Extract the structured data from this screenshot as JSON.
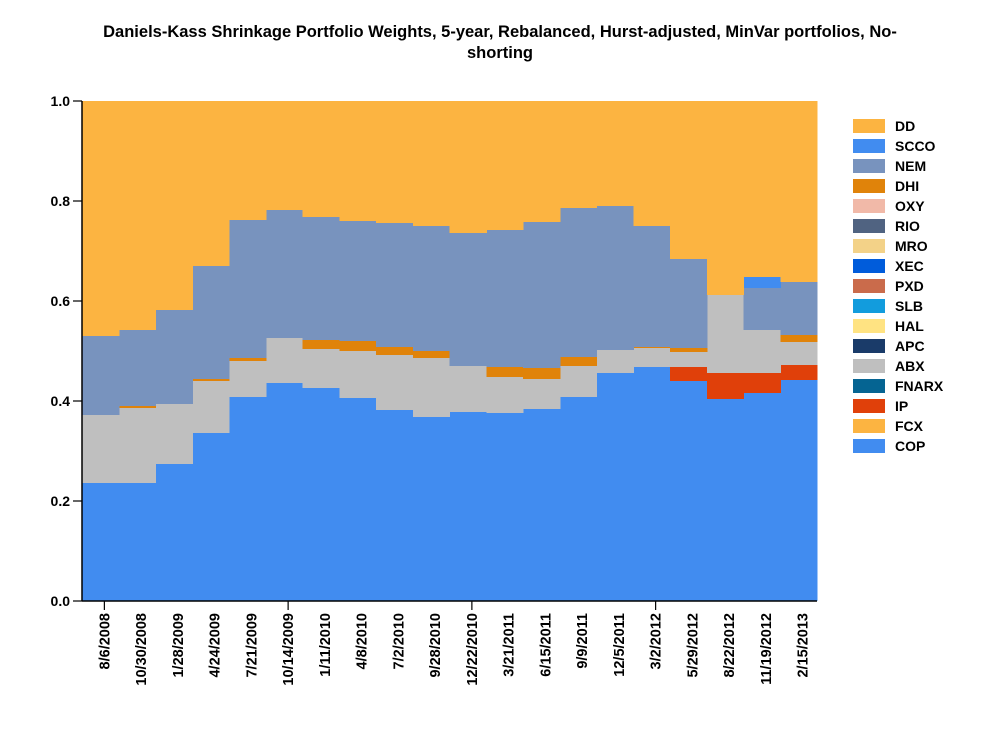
{
  "chart_data": {
    "type": "area",
    "stacked": true,
    "step": true,
    "title_lines": [
      "Daniels-Kass Shrinkage Portfolio Weights, 5-year, Rebalanced, Hurst-adjusted, MinVar portfolios, No-",
      "shorting"
    ],
    "xlabel": "",
    "ylabel": "",
    "ylim": [
      0,
      1
    ],
    "yticks": [
      "0.0",
      "0.2",
      "0.4",
      "0.6",
      "0.8",
      "1.0"
    ],
    "grid": false,
    "legend_position": "right",
    "x": [
      "8/6/2008",
      "10/30/2008",
      "1/28/2009",
      "4/24/2009",
      "7/21/2009",
      "10/14/2009",
      "1/11/2010",
      "4/8/2010",
      "7/2/2010",
      "9/28/2010",
      "12/22/2010",
      "3/21/2011",
      "6/15/2011",
      "9/9/2011",
      "12/5/2011",
      "3/2/2012",
      "5/29/2012",
      "8/22/2012",
      "11/19/2012",
      "2/15/2013"
    ],
    "series": [
      {
        "name": "COP",
        "color": "#418CF0",
        "values": [
          0.236,
          0.236,
          0.274,
          0.336,
          0.408,
          0.436,
          0.426,
          0.406,
          0.382,
          0.368,
          0.378,
          0.376,
          0.384,
          0.408,
          0.456,
          0.468,
          0.44,
          0.404,
          0.416,
          0.442
        ]
      },
      {
        "name": "FCX",
        "color": "#FCB441",
        "values": [
          0,
          0,
          0,
          0,
          0,
          0,
          0,
          0,
          0,
          0,
          0,
          0,
          0,
          0,
          0,
          0,
          0,
          0,
          0,
          0
        ]
      },
      {
        "name": "IP",
        "color": "#E0400A",
        "values": [
          0,
          0,
          0,
          0,
          0,
          0,
          0,
          0,
          0,
          0,
          0,
          0,
          0,
          0,
          0,
          0,
          0.028,
          0.052,
          0.04,
          0.03
        ]
      },
      {
        "name": "FNARX",
        "color": "#056492",
        "values": [
          0,
          0,
          0,
          0,
          0,
          0,
          0,
          0,
          0,
          0,
          0,
          0,
          0,
          0,
          0,
          0,
          0,
          0,
          0,
          0
        ]
      },
      {
        "name": "ABX",
        "color": "#BFBFBF",
        "values": [
          0.136,
          0.15,
          0.12,
          0.104,
          0.072,
          0.09,
          0.078,
          0.094,
          0.11,
          0.118,
          0.092,
          0.072,
          0.06,
          0.062,
          0.046,
          0.038,
          0.03,
          0.156,
          0.086,
          0.046
        ]
      },
      {
        "name": "APC",
        "color": "#1A3B69",
        "values": [
          0,
          0,
          0,
          0,
          0,
          0,
          0,
          0,
          0,
          0,
          0,
          0,
          0,
          0,
          0,
          0,
          0,
          0,
          0,
          0
        ]
      },
      {
        "name": "HAL",
        "color": "#FFE382",
        "values": [
          0,
          0,
          0,
          0,
          0,
          0,
          0,
          0,
          0,
          0,
          0,
          0,
          0,
          0,
          0,
          0,
          0,
          0,
          0,
          0
        ]
      },
      {
        "name": "SLB",
        "color": "#129CDD",
        "values": [
          0,
          0,
          0,
          0,
          0,
          0,
          0,
          0,
          0,
          0,
          0,
          0,
          0,
          0,
          0,
          0,
          0,
          0,
          0,
          0
        ]
      },
      {
        "name": "PXD",
        "color": "#CA6B4B",
        "values": [
          0,
          0,
          0,
          0,
          0,
          0,
          0,
          0,
          0,
          0,
          0,
          0,
          0,
          0,
          0,
          0,
          0,
          0,
          0,
          0
        ]
      },
      {
        "name": "XEC",
        "color": "#005CDB",
        "values": [
          0,
          0,
          0,
          0,
          0,
          0,
          0,
          0,
          0,
          0,
          0,
          0,
          0,
          0,
          0,
          0,
          0,
          0,
          0,
          0
        ]
      },
      {
        "name": "MRO",
        "color": "#F3D288",
        "values": [
          0,
          0,
          0,
          0,
          0,
          0,
          0,
          0,
          0,
          0,
          0,
          0,
          0,
          0,
          0,
          0,
          0,
          0,
          0,
          0
        ]
      },
      {
        "name": "RIO",
        "color": "#506381",
        "values": [
          0,
          0,
          0,
          0,
          0,
          0,
          0,
          0,
          0,
          0,
          0,
          0,
          0,
          0,
          0,
          0,
          0,
          0,
          0,
          0
        ]
      },
      {
        "name": "OXY",
        "color": "#F1B9A8",
        "values": [
          0,
          0,
          0,
          0,
          0,
          0,
          0,
          0,
          0,
          0,
          0,
          0,
          0,
          0,
          0,
          0,
          0,
          0,
          0,
          0
        ]
      },
      {
        "name": "DHI",
        "color": "#E0830A",
        "values": [
          0,
          0.004,
          0,
          0.004,
          0.006,
          0,
          0.018,
          0.02,
          0.016,
          0.014,
          0,
          0.02,
          0.022,
          0.018,
          0,
          0.002,
          0.008,
          0,
          0,
          0.014
        ]
      },
      {
        "name": "NEM",
        "color": "#7893BE",
        "values": [
          0.158,
          0.152,
          0.188,
          0.226,
          0.276,
          0.256,
          0.246,
          0.24,
          0.248,
          0.25,
          0.266,
          0.274,
          0.292,
          0.298,
          0.288,
          0.242,
          0.178,
          0,
          0.084,
          0.106
        ]
      },
      {
        "name": "SCCO",
        "color": "#418CF0",
        "values": [
          0,
          0,
          0,
          0,
          0,
          0,
          0,
          0,
          0,
          0,
          0,
          0,
          0,
          0,
          0,
          0,
          0,
          0,
          0.022,
          0
        ]
      },
      {
        "name": "DD",
        "color": "#FCB441",
        "values": [
          0.47,
          0.458,
          0.418,
          0.33,
          0.238,
          0.218,
          0.232,
          0.24,
          0.244,
          0.25,
          0.264,
          0.258,
          0.242,
          0.214,
          0.21,
          0.25,
          0.316,
          0.388,
          0.352,
          0.362
        ]
      }
    ],
    "legend_order": [
      "DD",
      "SCCO",
      "NEM",
      "DHI",
      "OXY",
      "RIO",
      "MRO",
      "XEC",
      "PXD",
      "SLB",
      "HAL",
      "APC",
      "ABX",
      "FNARX",
      "IP",
      "FCX",
      "COP"
    ],
    "major_tick_labels": [
      "8/6/2008",
      "10/14/2009",
      "12/22/2010",
      "3/2/2012"
    ]
  }
}
